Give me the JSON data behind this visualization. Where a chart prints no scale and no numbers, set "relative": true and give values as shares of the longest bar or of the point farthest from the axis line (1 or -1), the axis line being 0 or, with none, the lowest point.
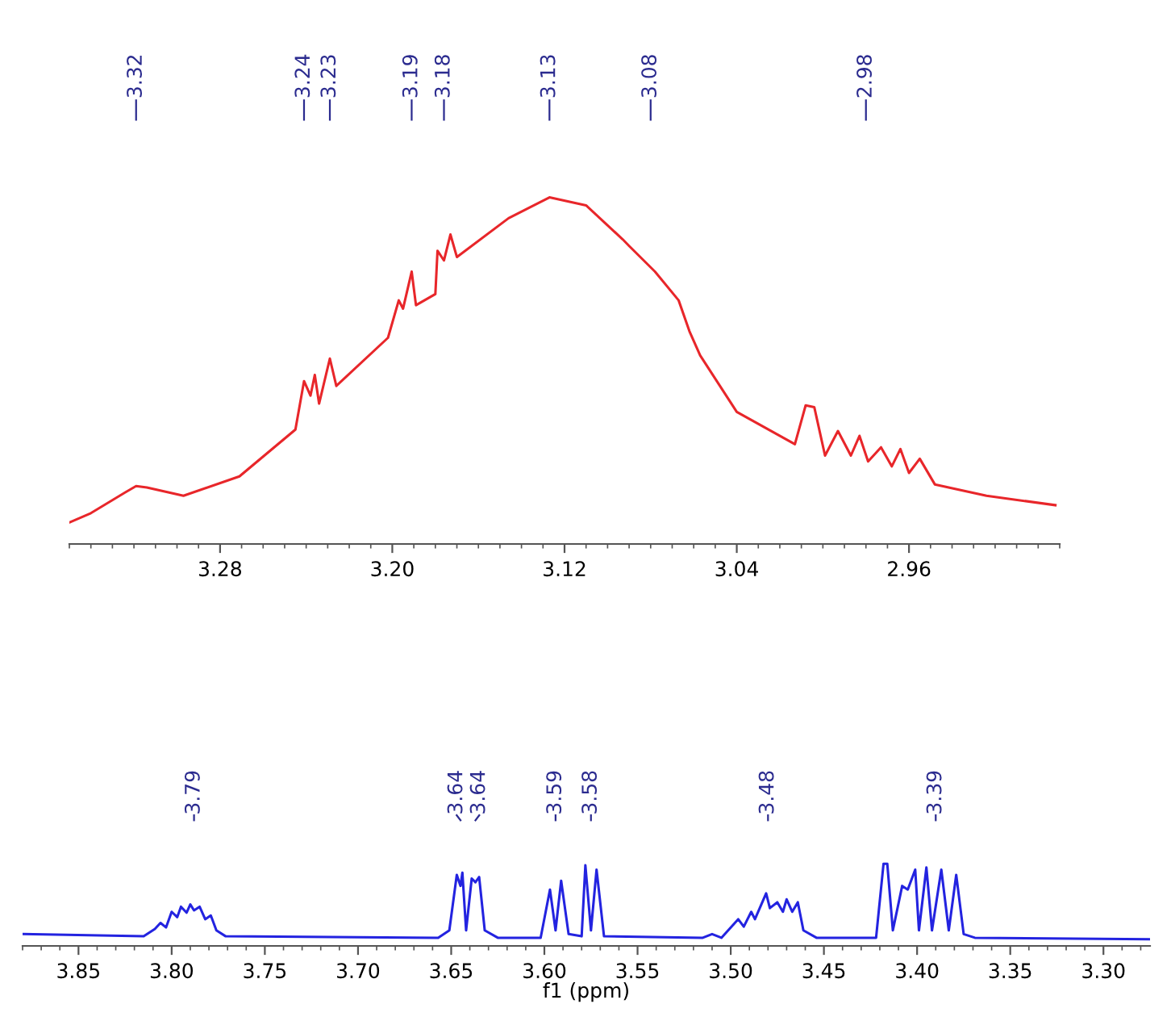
{
  "chart_data": [
    {
      "type": "line",
      "relative": true,
      "xlim": [
        3.35,
        2.89
      ],
      "xticks": [
        3.28,
        {
          "value": 3.2,
          "label": "3.20"
        },
        3.12,
        3.04,
        2.96
      ],
      "tick_labels": "x",
      "grid": false,
      "series": [
        {
          "color": "#e8262a",
          "x": [
            3.35,
            3.34,
            3.324,
            3.319,
            3.314,
            3.297,
            3.271,
            3.245,
            3.241,
            3.238,
            3.236,
            3.234,
            3.229,
            3.226,
            3.202,
            3.197,
            3.195,
            3.191,
            3.189,
            3.18,
            3.179,
            3.176,
            3.173,
            3.17,
            3.146,
            3.127,
            3.11,
            3.093,
            3.09,
            3.078,
            3.067,
            3.062,
            3.057,
            3.04,
            3.013,
            3.008,
            3.004,
            2.999,
            2.993,
            2.987,
            2.983,
            2.979,
            2.973,
            2.968,
            2.964,
            2.96,
            2.955,
            2.948,
            2.924,
            2.892
          ],
          "values": [
            0.062,
            0.089,
            0.149,
            0.167,
            0.163,
            0.139,
            0.195,
            0.33,
            0.47,
            0.428,
            0.488,
            0.405,
            0.535,
            0.456,
            0.595,
            0.703,
            0.679,
            0.786,
            0.689,
            0.721,
            0.846,
            0.818,
            0.893,
            0.828,
            0.94,
            1,
            0.977,
            0.879,
            0.86,
            0.786,
            0.703,
            0.614,
            0.544,
            0.381,
            0.288,
            0.4,
            0.395,
            0.255,
            0.326,
            0.255,
            0.312,
            0.238,
            0.279,
            0.224,
            0.274,
            0.205,
            0.246,
            0.172,
            0.139,
            0.112
          ]
        }
      ],
      "annotations": [
        {
          "text": "3.32",
          "x": 3.319
        },
        {
          "text": "3.24",
          "x": 3.241
        },
        {
          "text": "3.23",
          "x": 3.229
        },
        {
          "text": "3.19",
          "x": 3.191
        },
        {
          "text": "3.18",
          "x": 3.176
        },
        {
          "text": "3.13",
          "x": 3.127
        },
        {
          "text": "3.08",
          "x": 3.08
        },
        {
          "text": "2.98",
          "x": 2.98
        }
      ]
    },
    {
      "type": "line",
      "relative": true,
      "xlim": [
        3.88,
        3.275
      ],
      "xticks": [
        3.85,
        {
          "value": 3.8,
          "label": "3.80"
        },
        3.75,
        {
          "value": 3.7,
          "label": "3.70"
        },
        3.65,
        {
          "value": 3.6,
          "label": "3.60"
        },
        3.55,
        {
          "value": 3.5,
          "label": "3.50"
        },
        3.45,
        {
          "value": 3.4,
          "label": "3.40"
        },
        3.35,
        {
          "value": 3.3,
          "label": "3.30"
        }
      ],
      "tick_labels": "x",
      "grid": false,
      "xlabel": "f1 (ppm)",
      "series": [
        {
          "color": "#2323e0",
          "x": [
            3.88,
            3.815,
            3.809,
            3.806,
            3.803,
            3.8,
            3.797,
            3.795,
            3.792,
            3.79,
            3.788,
            3.785,
            3.782,
            3.779,
            3.776,
            3.771,
            3.657,
            3.651,
            3.647,
            3.645,
            3.644,
            3.642,
            3.639,
            3.637,
            3.635,
            3.632,
            3.625,
            3.602,
            3.597,
            3.594,
            3.591,
            3.587,
            3.58,
            3.578,
            3.575,
            3.572,
            3.568,
            3.515,
            3.51,
            3.505,
            3.496,
            3.493,
            3.489,
            3.487,
            3.481,
            3.479,
            3.475,
            3.472,
            3.47,
            3.467,
            3.464,
            3.461,
            3.454,
            3.422,
            3.418,
            3.416,
            3.413,
            3.408,
            3.405,
            3.401,
            3.399,
            3.395,
            3.392,
            3.387,
            3.383,
            3.379,
            3.375,
            3.369,
            3.275
          ],
          "values": [
            0.144,
            0.117,
            0.207,
            0.28,
            0.225,
            0.415,
            0.351,
            0.477,
            0.405,
            0.505,
            0.432,
            0.477,
            0.325,
            0.37,
            0.189,
            0.117,
            0.099,
            0.189,
            0.865,
            0.73,
            0.892,
            0.189,
            0.82,
            0.775,
            0.838,
            0.189,
            0.099,
            0.099,
            0.685,
            0.189,
            0.793,
            0.144,
            0.117,
            0.982,
            0.189,
            0.928,
            0.117,
            0.099,
            0.144,
            0.099,
            0.325,
            0.234,
            0.415,
            0.325,
            0.64,
            0.46,
            0.531,
            0.415,
            0.567,
            0.415,
            0.531,
            0.189,
            0.099,
            0.099,
            1,
            1,
            0.189,
            0.73,
            0.685,
            0.928,
            0.189,
            0.955,
            0.189,
            0.928,
            0.189,
            0.865,
            0.144,
            0.099,
            0.081
          ]
        }
      ],
      "annotations": [
        {
          "text": "3.79",
          "x": 3.788
        },
        {
          "text": "3.64",
          "x": 3.645
        },
        {
          "text": "3.64",
          "x": 3.637
        },
        {
          "text": "3.59",
          "x": 3.594
        },
        {
          "text": "3.58",
          "x": 3.575
        },
        {
          "text": "3.48",
          "x": 3.48
        },
        {
          "text": "3.39",
          "x": 3.39
        }
      ]
    }
  ]
}
